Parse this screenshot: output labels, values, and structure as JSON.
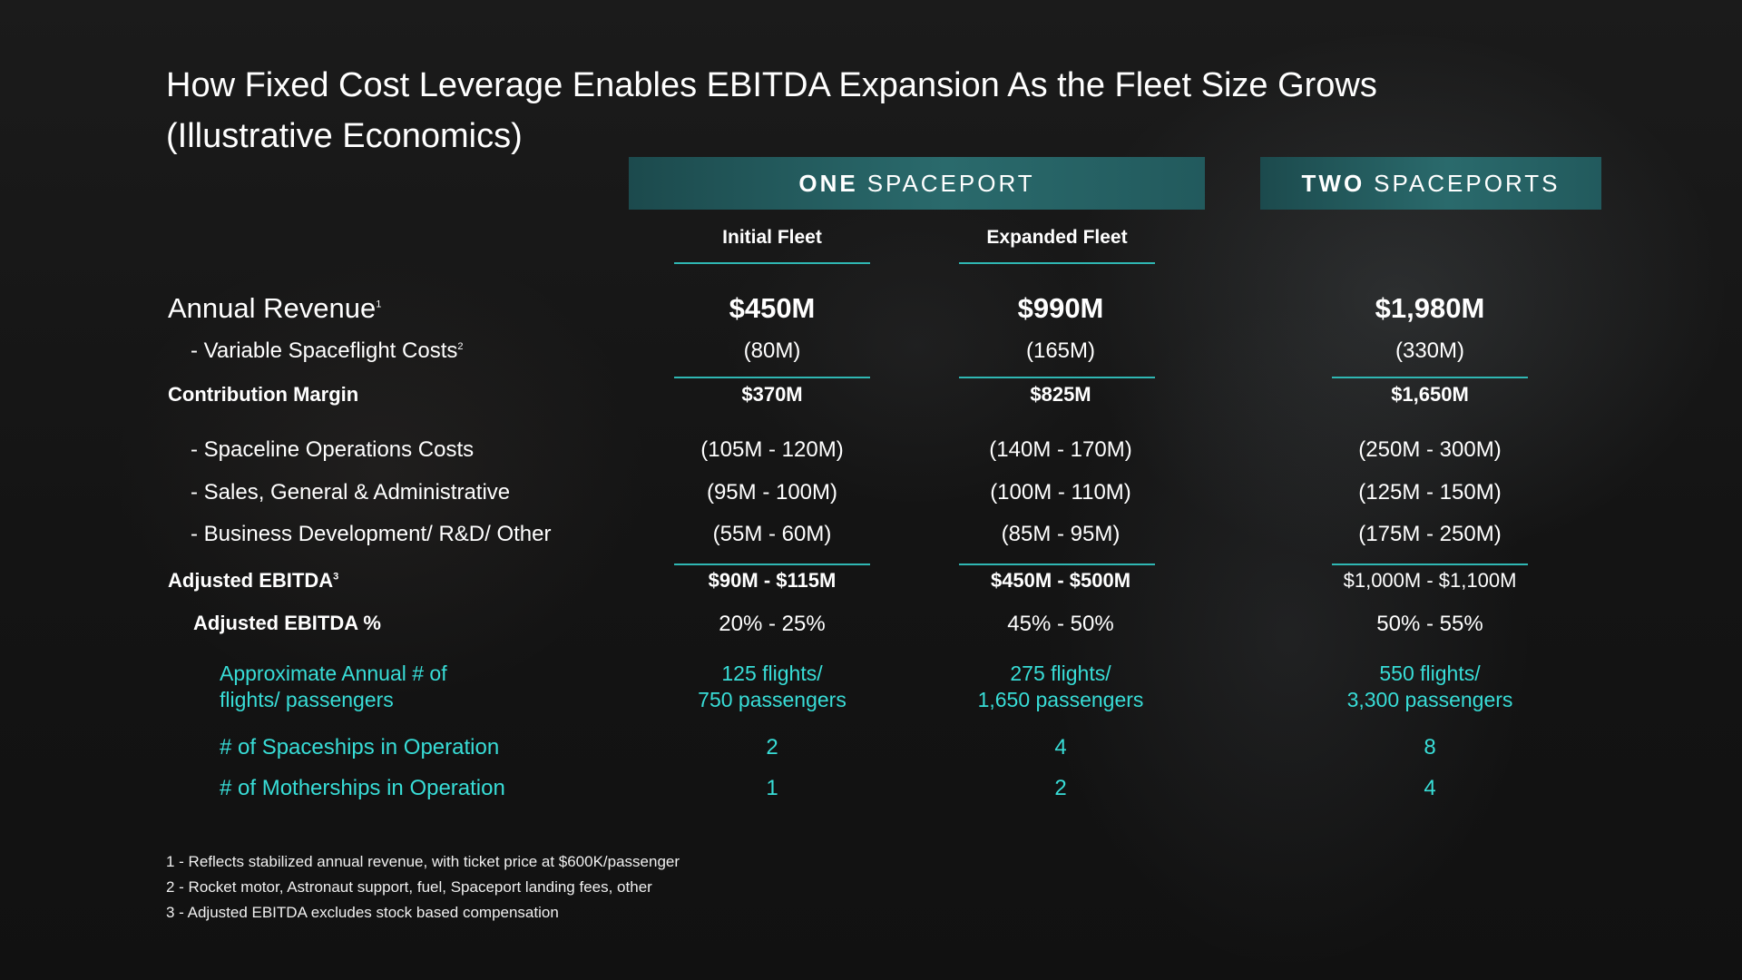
{
  "title": "How Fixed Cost Leverage Enables EBITDA Expansion As the Fleet Size Grows (Illustrative Economics)",
  "bands": {
    "one": {
      "bold": "ONE",
      "rest": "SPACEPORT"
    },
    "two": {
      "bold": "TWO",
      "rest": "SPACEPORTS"
    }
  },
  "columns": {
    "initial": "Initial Fleet",
    "expanded": "Expanded Fleet"
  },
  "rows": {
    "revenue": {
      "label": "Annual Revenue",
      "sup": "1",
      "values": [
        "$450M",
        "$990M",
        "$1,980M"
      ]
    },
    "variable": {
      "label": "- Variable Spaceflight Costs",
      "sup": "2",
      "values": [
        "(80M)",
        "(165M)",
        "(330M)"
      ]
    },
    "contribution": {
      "label": "Contribution Margin",
      "values": [
        "$370M",
        "$825M",
        "$1,650M"
      ]
    },
    "spaceline": {
      "label": "- Spaceline Operations Costs",
      "values": [
        "(105M - 120M)",
        "(140M - 170M)",
        "(250M - 300M)"
      ]
    },
    "sga": {
      "label": "- Sales, General & Administrative",
      "values": [
        "(95M - 100M)",
        "(100M - 110M)",
        "(125M - 150M)"
      ]
    },
    "bizdev": {
      "label": "- Business Development/ R&D/ Other",
      "values": [
        "(55M - 60M)",
        "(85M - 95M)",
        "(175M - 250M)"
      ]
    },
    "ebitda": {
      "label": "Adjusted EBITDA",
      "sup": "3",
      "values": [
        "$90M - $115M",
        "$450M - $500M",
        "$1,000M - $1,100M"
      ]
    },
    "ebitda_pct": {
      "label": "Adjusted EBITDA %",
      "values": [
        "20% - 25%",
        "45% - 50%",
        "50% - 55%"
      ]
    },
    "flights": {
      "label_line1": "Approximate Annual # of",
      "label_line2": "flights/ passengers",
      "values": [
        {
          "line1": "125 flights/",
          "line2": "750 passengers"
        },
        {
          "line1": "275 flights/",
          "line2": "1,650 passengers"
        },
        {
          "line1": "550 flights/",
          "line2": "3,300 passengers"
        }
      ]
    },
    "spaceships": {
      "label": "# of Spaceships in Operation",
      "values": [
        "2",
        "4",
        "8"
      ]
    },
    "motherships": {
      "label": "# of Motherships in Operation",
      "values": [
        "1",
        "2",
        "4"
      ]
    }
  },
  "footnotes": [
    "1 - Reflects stabilized annual revenue, with ticket price at $600K/passenger",
    "2 - Rocket motor, Astronaut support, fuel, Spaceport landing fees, other",
    "3 - Adjusted EBITDA excludes stock based compensation"
  ],
  "colors": {
    "accent_teal": "#38ddd7",
    "band": "#24605f",
    "rule": "#2fb7b3"
  }
}
